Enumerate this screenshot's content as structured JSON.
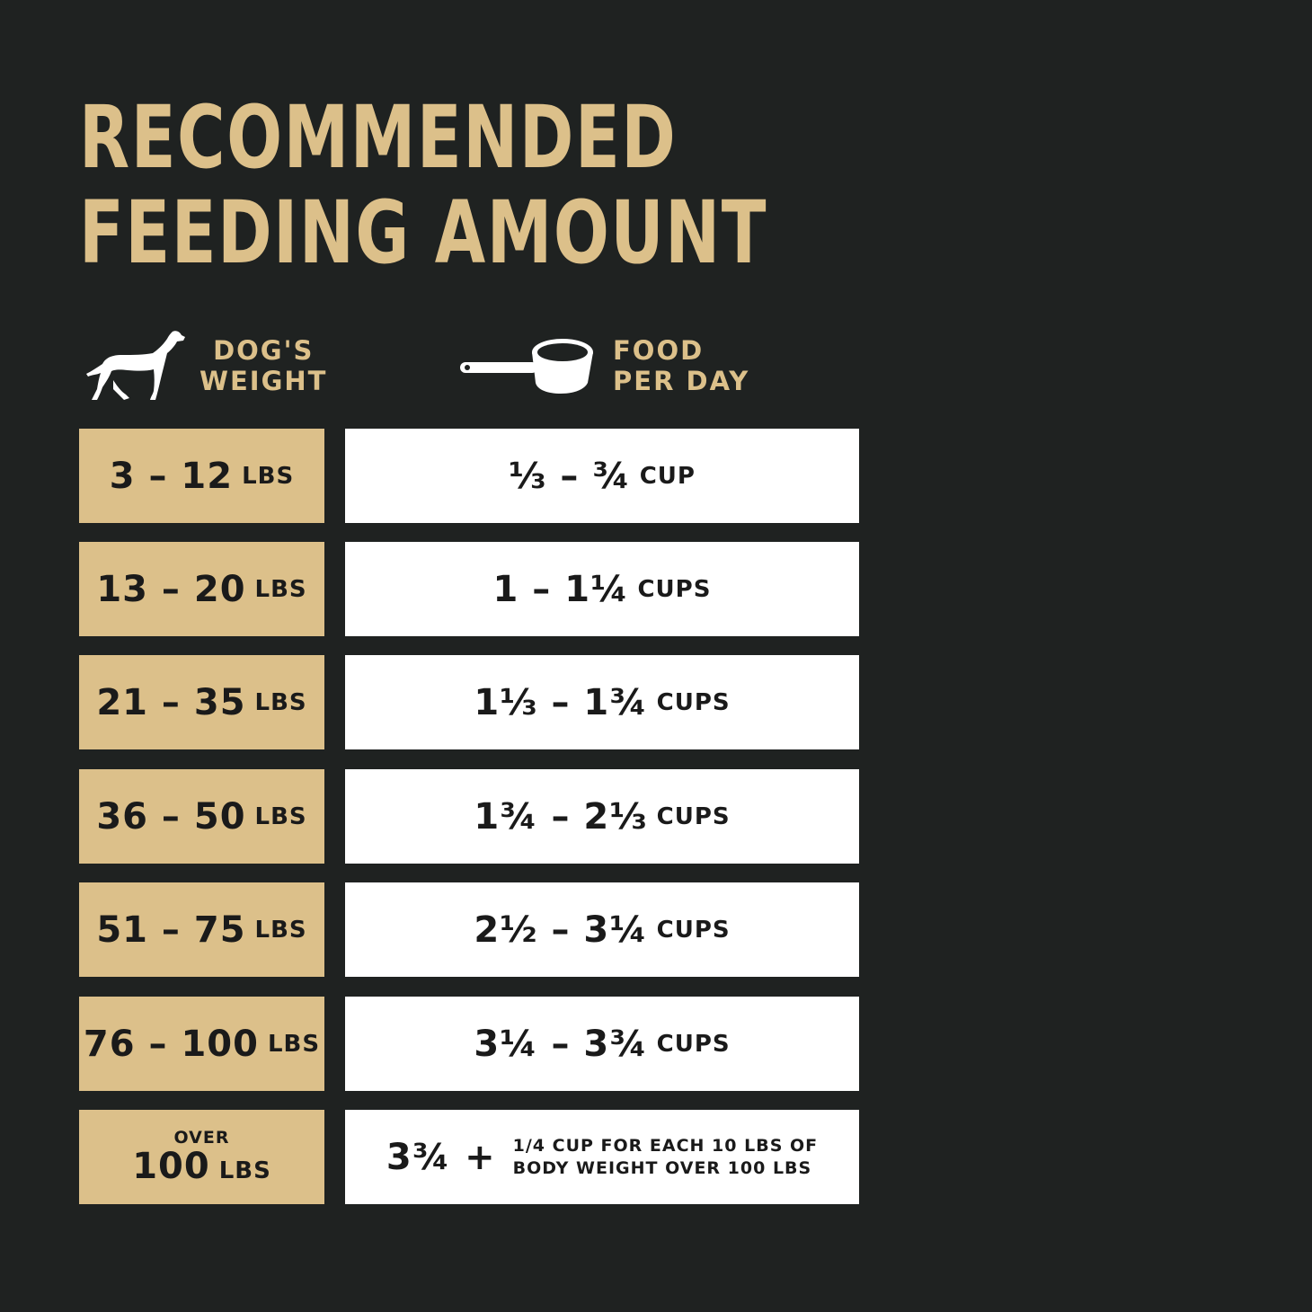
{
  "title": {
    "line1": "RECOMMENDED",
    "line2": "FEEDING AMOUNT"
  },
  "headers": {
    "weight": {
      "icon": "dog-icon",
      "line1": "DOG'S",
      "line2": "WEIGHT"
    },
    "food": {
      "icon": "measuring-cup-icon",
      "line1": "FOOD",
      "line2": "PER DAY"
    }
  },
  "rows": [
    {
      "weight": "3 – 12",
      "weight_unit": "LBS",
      "food": "⅓ – ¾",
      "food_unit": "CUP"
    },
    {
      "weight": "13 – 20",
      "weight_unit": "LBS",
      "food": "1 – 1¼",
      "food_unit": "CUPS"
    },
    {
      "weight": "21 – 35",
      "weight_unit": "LBS",
      "food": "1⅓ – 1¾",
      "food_unit": "CUPS"
    },
    {
      "weight": "36 – 50",
      "weight_unit": "LBS",
      "food": "1¾ – 2⅓",
      "food_unit": "CUPS"
    },
    {
      "weight": "51 – 75",
      "weight_unit": "LBS",
      "food": "2½ – 3¼",
      "food_unit": "CUPS"
    },
    {
      "weight": "76 – 100",
      "weight_unit": "LBS",
      "food": "3¼ – 3¾",
      "food_unit": "CUPS"
    }
  ],
  "last_row": {
    "weight_prefix": "OVER",
    "weight": "100",
    "weight_unit": "LBS",
    "food": "3¾",
    "plus": "+",
    "note_line1": "1/4 CUP FOR EACH 10 LBS OF",
    "note_line2": "BODY WEIGHT OVER 100 LBS"
  },
  "colors": {
    "background": "#1f2221",
    "gold": "#dcc08a",
    "white": "#ffffff",
    "text": "#1a1a1a"
  }
}
